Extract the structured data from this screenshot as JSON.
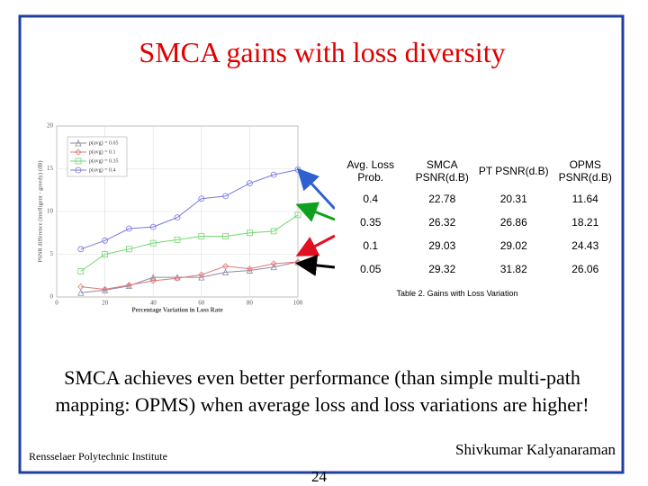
{
  "title": "SMCA gains with loss diversity",
  "chart_data": {
    "type": "line",
    "x": [
      10,
      20,
      30,
      40,
      50,
      60,
      70,
      80,
      90,
      100
    ],
    "xlabel": "Percentage Variation in Loss Rate",
    "ylabel": "PSNR difference (intelligent - greedy) (dB)",
    "xlim": [
      0,
      100
    ],
    "xticks": [
      0,
      20,
      40,
      60,
      80,
      100
    ],
    "ylim": [
      0,
      20
    ],
    "yticks": [
      0,
      5,
      10,
      15,
      20
    ],
    "legend": "upper left",
    "series": [
      {
        "name": "p(avg) = 0.05",
        "color": "#8a8aa8",
        "marker": "triangle",
        "values": [
          0.5,
          0.8,
          1.3,
          2.3,
          2.3,
          2.3,
          2.9,
          3.1,
          3.5,
          4.1
        ]
      },
      {
        "name": "p(avg) = 0.1",
        "color": "#e07878",
        "marker": "diamond",
        "values": [
          1.2,
          0.9,
          1.4,
          1.9,
          2.2,
          2.6,
          3.6,
          3.3,
          3.9,
          4.1
        ]
      },
      {
        "name": "p(avg) = 0.35",
        "color": "#70d870",
        "marker": "square",
        "values": [
          3.0,
          5.0,
          5.6,
          6.3,
          6.7,
          7.1,
          7.1,
          7.5,
          7.7,
          9.6
        ]
      },
      {
        "name": "p(avg) = 0.4",
        "color": "#7878e0",
        "marker": "circle",
        "values": [
          5.6,
          6.6,
          8.0,
          8.2,
          9.3,
          11.5,
          11.8,
          13.3,
          14.3,
          14.9
        ]
      }
    ]
  },
  "table": {
    "header": [
      "Avg. Loss Prob.",
      "SMCA PSNR(d.B)",
      "PT PSNR(d.B)",
      "OPMS PSNR(d.B)"
    ],
    "rows": [
      [
        "0.4",
        "22.78",
        "20.31",
        "11.64"
      ],
      [
        "0.35",
        "26.32",
        "26.86",
        "18.21"
      ],
      [
        "0.1",
        "29.03",
        "29.02",
        "24.43"
      ],
      [
        "0.05",
        "29.32",
        "31.82",
        "26.06"
      ]
    ],
    "caption": "Table 2. Gains with Loss Variation"
  },
  "body": "SMCA achieves even better performance (than simple multi-path mapping: OPMS) when average loss and loss variations are higher!",
  "footer": {
    "institute": "Rensselaer Polytechnic Institute",
    "author": "Shivkumar Kalyanaraman",
    "page": "24"
  }
}
